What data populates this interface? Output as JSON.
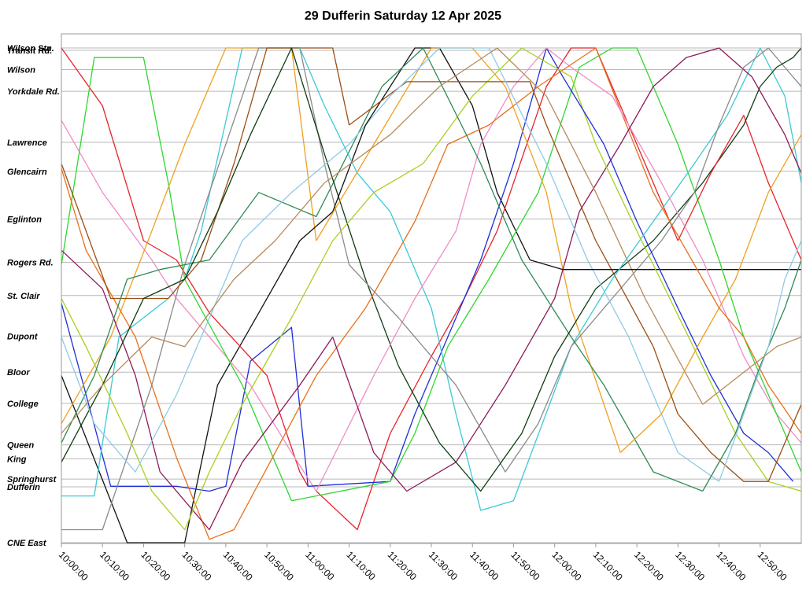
{
  "chart_data": {
    "type": "line",
    "title": "29 Dufferin Saturday 12 Apr 2025",
    "xlabel": "",
    "ylabel": "",
    "x_unit": "minutes after 10:00:00",
    "xlim": [
      0,
      180
    ],
    "x_ticks": [
      "10:00:00",
      "10:10:00",
      "10:20:00",
      "10:30:00",
      "10:40:00",
      "10:50:00",
      "11:00:00",
      "11:10:00",
      "11:20:00",
      "11:30:00",
      "11:40:00",
      "11:50:00",
      "12:00:00",
      "12:10:00",
      "12:20:00",
      "12:30:00",
      "12:40:00",
      "12:50:00"
    ],
    "stops": [
      {
        "name": "Wilson Stn.",
        "pos": 0
      },
      {
        "name": "Transit Rd.",
        "pos": 0.5
      },
      {
        "name": "Wilson",
        "pos": 4.5
      },
      {
        "name": "Yorkdale Rd.",
        "pos": 9
      },
      {
        "name": "Lawrence",
        "pos": 19.6
      },
      {
        "name": "Glencairn",
        "pos": 25.6
      },
      {
        "name": "Eglinton",
        "pos": 35.5
      },
      {
        "name": "Rogers Rd.",
        "pos": 44.5
      },
      {
        "name": "St. Clair",
        "pos": 51.4
      },
      {
        "name": "Dupont",
        "pos": 59.8
      },
      {
        "name": "Bloor",
        "pos": 67.3
      },
      {
        "name": "College",
        "pos": 73.8
      },
      {
        "name": "Queen",
        "pos": 82.4
      },
      {
        "name": "King",
        "pos": 85.3
      },
      {
        "name": "Springhurst",
        "pos": 89.5
      },
      {
        "name": "Dufferin",
        "pos": 91.1
      },
      {
        "name": "CNE East",
        "pos": 102.7
      }
    ],
    "ylim": [
      0,
      102.7
    ],
    "y_direction": "top-to-bottom",
    "grid": "horizontal at each stop",
    "legend": "none",
    "series": [
      {
        "color": "#111111",
        "x": [
          0,
          16,
          17,
          30,
          38,
          48
        ],
        "y": [
          68,
          102.7,
          102.7,
          102.7,
          70,
          55
        ]
      },
      {
        "color": "#e8232b",
        "x": [
          0,
          10,
          20,
          28,
          36,
          50,
          58,
          60
        ],
        "y": [
          0,
          12,
          40,
          44,
          55,
          68,
          88,
          91
        ]
      },
      {
        "color": "#1f2fd6",
        "x": [
          0,
          12,
          28,
          36,
          40,
          46,
          56,
          60
        ],
        "y": [
          53,
          91,
          91,
          92,
          91,
          65,
          58,
          91
        ]
      },
      {
        "color": "#3cc9d6",
        "x": [
          0,
          8,
          14,
          26,
          30,
          34,
          44,
          58
        ],
        "y": [
          93,
          93,
          60,
          52,
          48,
          38,
          0,
          0
        ]
      },
      {
        "color": "#f08cc6",
        "x": [
          0,
          10,
          22,
          28,
          34,
          46,
          56,
          62
        ],
        "y": [
          15,
          30,
          44,
          52,
          58,
          70,
          84,
          92
        ]
      },
      {
        "color": "#2fd62f",
        "x": [
          0,
          8,
          20,
          26,
          30,
          44,
          56
        ],
        "y": [
          45,
          2,
          2,
          28,
          48,
          70,
          94
        ]
      },
      {
        "color": "#f0a020",
        "x": [
          0,
          12,
          22,
          30,
          40,
          56,
          62
        ],
        "y": [
          78,
          60,
          38,
          20,
          0,
          0,
          40
        ]
      },
      {
        "color": "#e8701c",
        "x": [
          0,
          6,
          18,
          28,
          36,
          42,
          62
        ],
        "y": [
          25,
          42,
          60,
          85,
          102,
          100,
          68
        ]
      },
      {
        "color": "#8b1a5b",
        "x": [
          0,
          10,
          18,
          24,
          36,
          44,
          58,
          66
        ],
        "y": [
          42,
          50,
          68,
          88,
          100,
          86,
          70,
          60
        ]
      },
      {
        "color": "#8a8a8a",
        "x": [
          0,
          10,
          22,
          30,
          36,
          48,
          58,
          64,
          70
        ],
        "y": [
          100,
          100,
          70,
          45,
          30,
          0,
          0,
          24,
          45
        ]
      },
      {
        "color": "#a8d020",
        "x": [
          0,
          6,
          16,
          22,
          30,
          36,
          44,
          56,
          66
        ],
        "y": [
          52,
          62,
          80,
          92,
          100,
          88,
          74,
          56,
          40
        ]
      },
      {
        "color": "#9a4e14",
        "x": [
          0,
          12,
          26,
          34,
          42,
          50,
          66,
          70
        ],
        "y": [
          24,
          52,
          52,
          44,
          24,
          0,
          0,
          16
        ]
      },
      {
        "color": "#2f8a56",
        "x": [
          0,
          8,
          16,
          24,
          36,
          48,
          62,
          78
        ],
        "y": [
          82,
          68,
          48,
          46,
          44,
          30,
          35,
          8
        ]
      },
      {
        "color": "#0f3d12",
        "x": [
          0,
          10,
          20,
          30,
          38,
          46,
          56,
          64,
          74,
          82
        ],
        "y": [
          86,
          70,
          52,
          48,
          34,
          18,
          0,
          22,
          48,
          66
        ]
      },
      {
        "color": "#8ecae6",
        "x": [
          0,
          8,
          18,
          28,
          34,
          44,
          56,
          70,
          80
        ],
        "y": [
          60,
          78,
          88,
          72,
          60,
          40,
          30,
          20,
          10
        ]
      },
      {
        "color": "#b68a5a",
        "x": [
          0,
          10,
          22,
          30,
          42,
          52,
          64
        ],
        "y": [
          80,
          70,
          60,
          62,
          48,
          40,
          28
        ]
      },
      {
        "color": "#111111",
        "x": [
          48,
          58,
          66,
          74,
          86,
          92,
          100,
          106,
          114
        ],
        "y": [
          55,
          40,
          34,
          16,
          0,
          0,
          12,
          30,
          44
        ]
      },
      {
        "color": "#e8232b",
        "x": [
          62,
          72,
          80,
          90,
          98,
          106,
          118,
          124,
          130,
          140,
          150
        ],
        "y": [
          92,
          100,
          80,
          64,
          52,
          38,
          8,
          0,
          0,
          20,
          40
        ]
      },
      {
        "color": "#1f2fd6",
        "x": [
          60,
          80,
          86,
          94,
          102,
          110,
          118,
          122
        ],
        "y": [
          91,
          90,
          76,
          60,
          44,
          24,
          0,
          6
        ]
      },
      {
        "color": "#3cc9d6",
        "x": [
          58,
          64,
          72,
          80,
          90,
          96,
          102,
          110,
          124,
          134
        ],
        "y": [
          0,
          12,
          26,
          34,
          54,
          76,
          96,
          94,
          62,
          48
        ]
      },
      {
        "color": "#f08cc6",
        "x": [
          62,
          76,
          86,
          96,
          102,
          110,
          118,
          124
        ],
        "y": [
          92,
          68,
          52,
          38,
          20,
          8,
          0,
          4
        ]
      },
      {
        "color": "#2fd62f",
        "x": [
          56,
          80,
          86,
          94,
          104,
          116,
          126,
          134,
          140,
          150,
          160
        ],
        "y": [
          94,
          90,
          80,
          62,
          48,
          30,
          4,
          0,
          0,
          20,
          44
        ]
      },
      {
        "color": "#f0a020",
        "x": [
          62,
          76,
          90,
          100,
          108,
          118,
          124,
          136
        ],
        "y": [
          40,
          20,
          0,
          0,
          8,
          30,
          54,
          84
        ]
      },
      {
        "color": "#e8701c",
        "x": [
          62,
          74,
          86,
          94,
          104,
          116,
          130,
          144
        ],
        "y": [
          68,
          54,
          36,
          20,
          16,
          8,
          0,
          30
        ]
      },
      {
        "color": "#8b1a5b",
        "x": [
          66,
          76,
          84,
          96,
          108,
          120,
          126,
          136
        ],
        "y": [
          60,
          84,
          92,
          86,
          70,
          52,
          34,
          20
        ]
      },
      {
        "color": "#8a8a8a",
        "x": [
          70,
          82,
          96,
          108,
          116,
          124,
          134,
          146
        ],
        "y": [
          45,
          56,
          70,
          88,
          78,
          62,
          52,
          40
        ]
      },
      {
        "color": "#a8d020",
        "x": [
          66,
          76,
          88,
          100,
          112,
          124,
          130,
          140
        ],
        "y": [
          40,
          30,
          24,
          10,
          0,
          6,
          20,
          38
        ]
      },
      {
        "color": "#9a4e14",
        "x": [
          70,
          84,
          96,
          104,
          114,
          118,
          130,
          144
        ],
        "y": [
          16,
          7,
          7,
          7,
          7,
          16,
          40,
          62
        ]
      },
      {
        "color": "#2f8a56",
        "x": [
          78,
          88,
          102,
          112,
          124,
          132,
          144,
          156
        ],
        "y": [
          8,
          0,
          24,
          44,
          60,
          70,
          88,
          92
        ]
      },
      {
        "color": "#0f3d12",
        "x": [
          82,
          92,
          102,
          112,
          120,
          130,
          144,
          156,
          166
        ],
        "y": [
          66,
          82,
          92,
          80,
          64,
          50,
          40,
          28,
          16
        ]
      },
      {
        "color": "#8ecae6",
        "x": [
          80,
          92,
          104,
          118,
          128,
          138,
          150,
          160
        ],
        "y": [
          10,
          0,
          0,
          24,
          44,
          60,
          84,
          90
        ]
      },
      {
        "color": "#b68a5a",
        "x": [
          64,
          80,
          92,
          106,
          118,
          130,
          142,
          156
        ],
        "y": [
          28,
          18,
          8,
          0,
          10,
          30,
          52,
          74
        ]
      },
      {
        "color": "#111111",
        "x": [
          114,
          122,
          132,
          144,
          150,
          158,
          166,
          172,
          180
        ],
        "y": [
          44,
          46,
          46,
          46,
          46,
          46,
          46,
          46,
          46
        ]
      },
      {
        "color": "#e8232b",
        "x": [
          150,
          158,
          166,
          172,
          180
        ],
        "y": [
          40,
          26,
          14,
          28,
          44
        ]
      },
      {
        "color": "#1f2fd6",
        "x": [
          122,
          132,
          140,
          150,
          158,
          166,
          172,
          178
        ],
        "y": [
          6,
          20,
          36,
          54,
          68,
          80,
          84,
          90
        ]
      },
      {
        "color": "#3cc9d6",
        "x": [
          134,
          144,
          154,
          162,
          170,
          176,
          180
        ],
        "y": [
          48,
          36,
          24,
          14,
          0,
          10,
          28
        ]
      },
      {
        "color": "#f08cc6",
        "x": [
          124,
          134,
          146,
          156,
          166,
          174,
          180
        ],
        "y": [
          4,
          10,
          28,
          44,
          64,
          76,
          82
        ]
      },
      {
        "color": "#2fd62f",
        "x": [
          160,
          166,
          172,
          176,
          180
        ],
        "y": [
          44,
          60,
          72,
          80,
          88
        ]
      },
      {
        "color": "#f0a020",
        "x": [
          136,
          146,
          156,
          164,
          172,
          180
        ],
        "y": [
          84,
          76,
          60,
          48,
          30,
          18
        ]
      },
      {
        "color": "#e8701c",
        "x": [
          144,
          152,
          160,
          166,
          172,
          180
        ],
        "y": [
          30,
          42,
          54,
          60,
          70,
          80
        ]
      },
      {
        "color": "#8b1a5b",
        "x": [
          136,
          144,
          152,
          160,
          168,
          176,
          180
        ],
        "y": [
          20,
          8,
          2,
          0,
          6,
          18,
          26
        ]
      },
      {
        "color": "#8a8a8a",
        "x": [
          146,
          154,
          160,
          166,
          172,
          180
        ],
        "y": [
          40,
          30,
          16,
          4,
          0,
          8
        ]
      },
      {
        "color": "#a8d020",
        "x": [
          140,
          148,
          156,
          164,
          172,
          180
        ],
        "y": [
          38,
          52,
          66,
          80,
          90,
          92
        ]
      },
      {
        "color": "#9a4e14",
        "x": [
          144,
          150,
          158,
          166,
          172,
          180
        ],
        "y": [
          62,
          76,
          84,
          90,
          90,
          74
        ]
      },
      {
        "color": "#2f8a56",
        "x": [
          156,
          164,
          170,
          176,
          180
        ],
        "y": [
          92,
          80,
          66,
          54,
          44
        ]
      },
      {
        "color": "#0f3d12",
        "x": [
          166,
          170,
          174,
          178,
          180
        ],
        "y": [
          16,
          8,
          4,
          2,
          0
        ]
      },
      {
        "color": "#8ecae6",
        "x": [
          160,
          166,
          172,
          176,
          180
        ],
        "y": [
          90,
          76,
          62,
          48,
          40
        ]
      },
      {
        "color": "#b68a5a",
        "x": [
          156,
          162,
          168,
          174,
          180
        ],
        "y": [
          74,
          70,
          66,
          62,
          60
        ]
      }
    ]
  }
}
